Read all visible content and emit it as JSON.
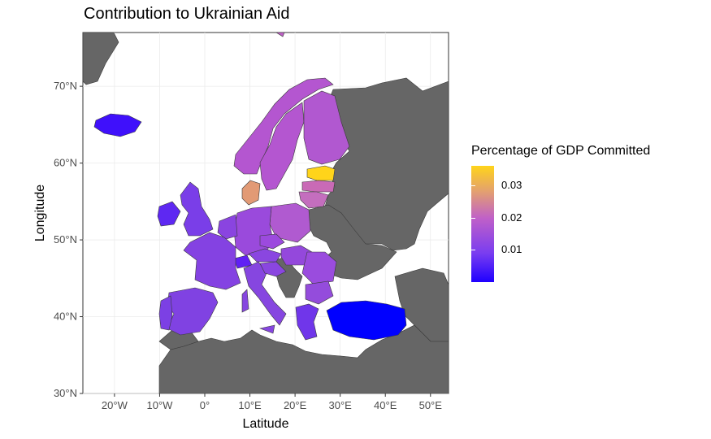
{
  "title": "Contribution to Ukrainian Aid",
  "axes": {
    "x_title": "Latitude",
    "y_title": "Longitude",
    "x_ticks": [
      "20°W",
      "10°W",
      "0°",
      "10°E",
      "20°E",
      "30°E",
      "40°E",
      "50°E"
    ],
    "y_ticks": [
      "70°N",
      "60°N",
      "50°N",
      "40°N",
      "30°N"
    ]
  },
  "legend": {
    "title": "Percentage of GDP Committed",
    "ticks": [
      "0.03",
      "0.02",
      "0.01"
    ],
    "range": [
      0.0,
      0.036
    ],
    "colors": {
      "low": "#1f00ff",
      "mid": "#c060c8",
      "high": "#ffd41a"
    }
  },
  "colors": {
    "land_no_data": "#666666",
    "sea": "#ffffff",
    "grid": "#ebebeb"
  },
  "chart_data": {
    "type": "choropleth",
    "title": "Contribution to Ukrainian Aid",
    "xlabel": "Latitude",
    "ylabel": "Longitude",
    "xlim": [
      -27,
      54
    ],
    "ylim": [
      30,
      77
    ],
    "countries": [
      {
        "name": "Estonia",
        "value": 0.034
      },
      {
        "name": "Denmark",
        "value": 0.026
      },
      {
        "name": "Latvia",
        "value": 0.018
      },
      {
        "name": "Lithuania",
        "value": 0.017
      },
      {
        "name": "Norway",
        "value": 0.015
      },
      {
        "name": "Sweden",
        "value": 0.015
      },
      {
        "name": "Finland",
        "value": 0.014
      },
      {
        "name": "Poland",
        "value": 0.014
      },
      {
        "name": "Germany",
        "value": 0.011
      },
      {
        "name": "Czechia",
        "value": 0.011
      },
      {
        "name": "Slovakia",
        "value": 0.011
      },
      {
        "name": "Romania",
        "value": 0.009
      },
      {
        "name": "Netherlands",
        "value": 0.009
      },
      {
        "name": "Belgium",
        "value": 0.008
      },
      {
        "name": "France",
        "value": 0.008
      },
      {
        "name": "Austria",
        "value": 0.008
      },
      {
        "name": "Bulgaria",
        "value": 0.009
      },
      {
        "name": "Italy",
        "value": 0.008
      },
      {
        "name": "Spain",
        "value": 0.008
      },
      {
        "name": "Portugal",
        "value": 0.008
      },
      {
        "name": "Croatia",
        "value": 0.008
      },
      {
        "name": "Slovenia",
        "value": 0.008
      },
      {
        "name": "Greece",
        "value": 0.007
      },
      {
        "name": "United Kingdom",
        "value": 0.007
      },
      {
        "name": "Ireland",
        "value": 0.005
      },
      {
        "name": "Switzerland",
        "value": 0.004
      },
      {
        "name": "Iceland",
        "value": 0.003
      },
      {
        "name": "Turkey",
        "value": 0.0
      }
    ]
  }
}
